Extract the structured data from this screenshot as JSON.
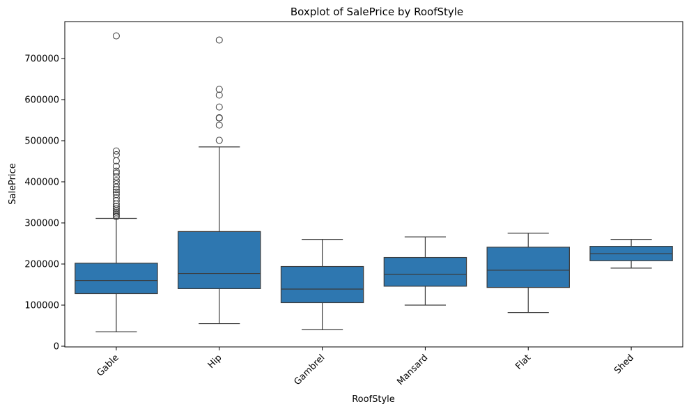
{
  "chart_data": {
    "type": "boxplot",
    "title": "Boxplot of SalePrice by RoofStyle",
    "xlabel": "RoofStyle",
    "ylabel": "SalePrice",
    "ylim": [
      0,
      785000
    ],
    "yticks": [
      0,
      100000,
      200000,
      300000,
      400000,
      500000,
      600000,
      700000
    ],
    "ytick_labels": [
      "0",
      "100000",
      "200000",
      "300000",
      "400000",
      "500000",
      "600000",
      "700000"
    ],
    "x_tick_rotation_deg": 45,
    "grid": false,
    "colors": {
      "box_fill": "#2e77b0",
      "line": "#3b3b3b",
      "axis": "#000000"
    },
    "categories": [
      "Gable",
      "Hip",
      "Gambrel",
      "Mansard",
      "Flat",
      "Shed"
    ],
    "boxes": [
      {
        "category": "Gable",
        "whisker_low": 35000,
        "q1": 128000,
        "median": 160000,
        "q3": 202000,
        "whisker_high": 311000,
        "outliers": [
          755000,
          475000,
          466000,
          451000,
          438000,
          426000,
          421000,
          412000,
          403000,
          395000,
          387000,
          381000,
          375000,
          369000,
          361000,
          354000,
          346000,
          340000,
          335000,
          330000,
          326000,
          322000,
          318000,
          315000
        ]
      },
      {
        "category": "Hip",
        "whisker_low": 55000,
        "q1": 140000,
        "median": 177000,
        "q3": 279000,
        "whisker_high": 485000,
        "outliers": [
          745000,
          625000,
          611000,
          582000,
          556000,
          555000,
          538000,
          501000
        ]
      },
      {
        "category": "Gambrel",
        "whisker_low": 40000,
        "q1": 106000,
        "median": 139000,
        "q3": 194000,
        "whisker_high": 260000,
        "outliers": []
      },
      {
        "category": "Mansard",
        "whisker_low": 100000,
        "q1": 146000,
        "median": 175000,
        "q3": 216000,
        "whisker_high": 266000,
        "outliers": []
      },
      {
        "category": "Flat",
        "whisker_low": 82000,
        "q1": 143000,
        "median": 185000,
        "q3": 241000,
        "whisker_high": 275000,
        "outliers": []
      },
      {
        "category": "Shed",
        "whisker_low": 190000,
        "q1": 208000,
        "median": 225000,
        "q3": 243000,
        "whisker_high": 260000,
        "outliers": []
      }
    ]
  }
}
